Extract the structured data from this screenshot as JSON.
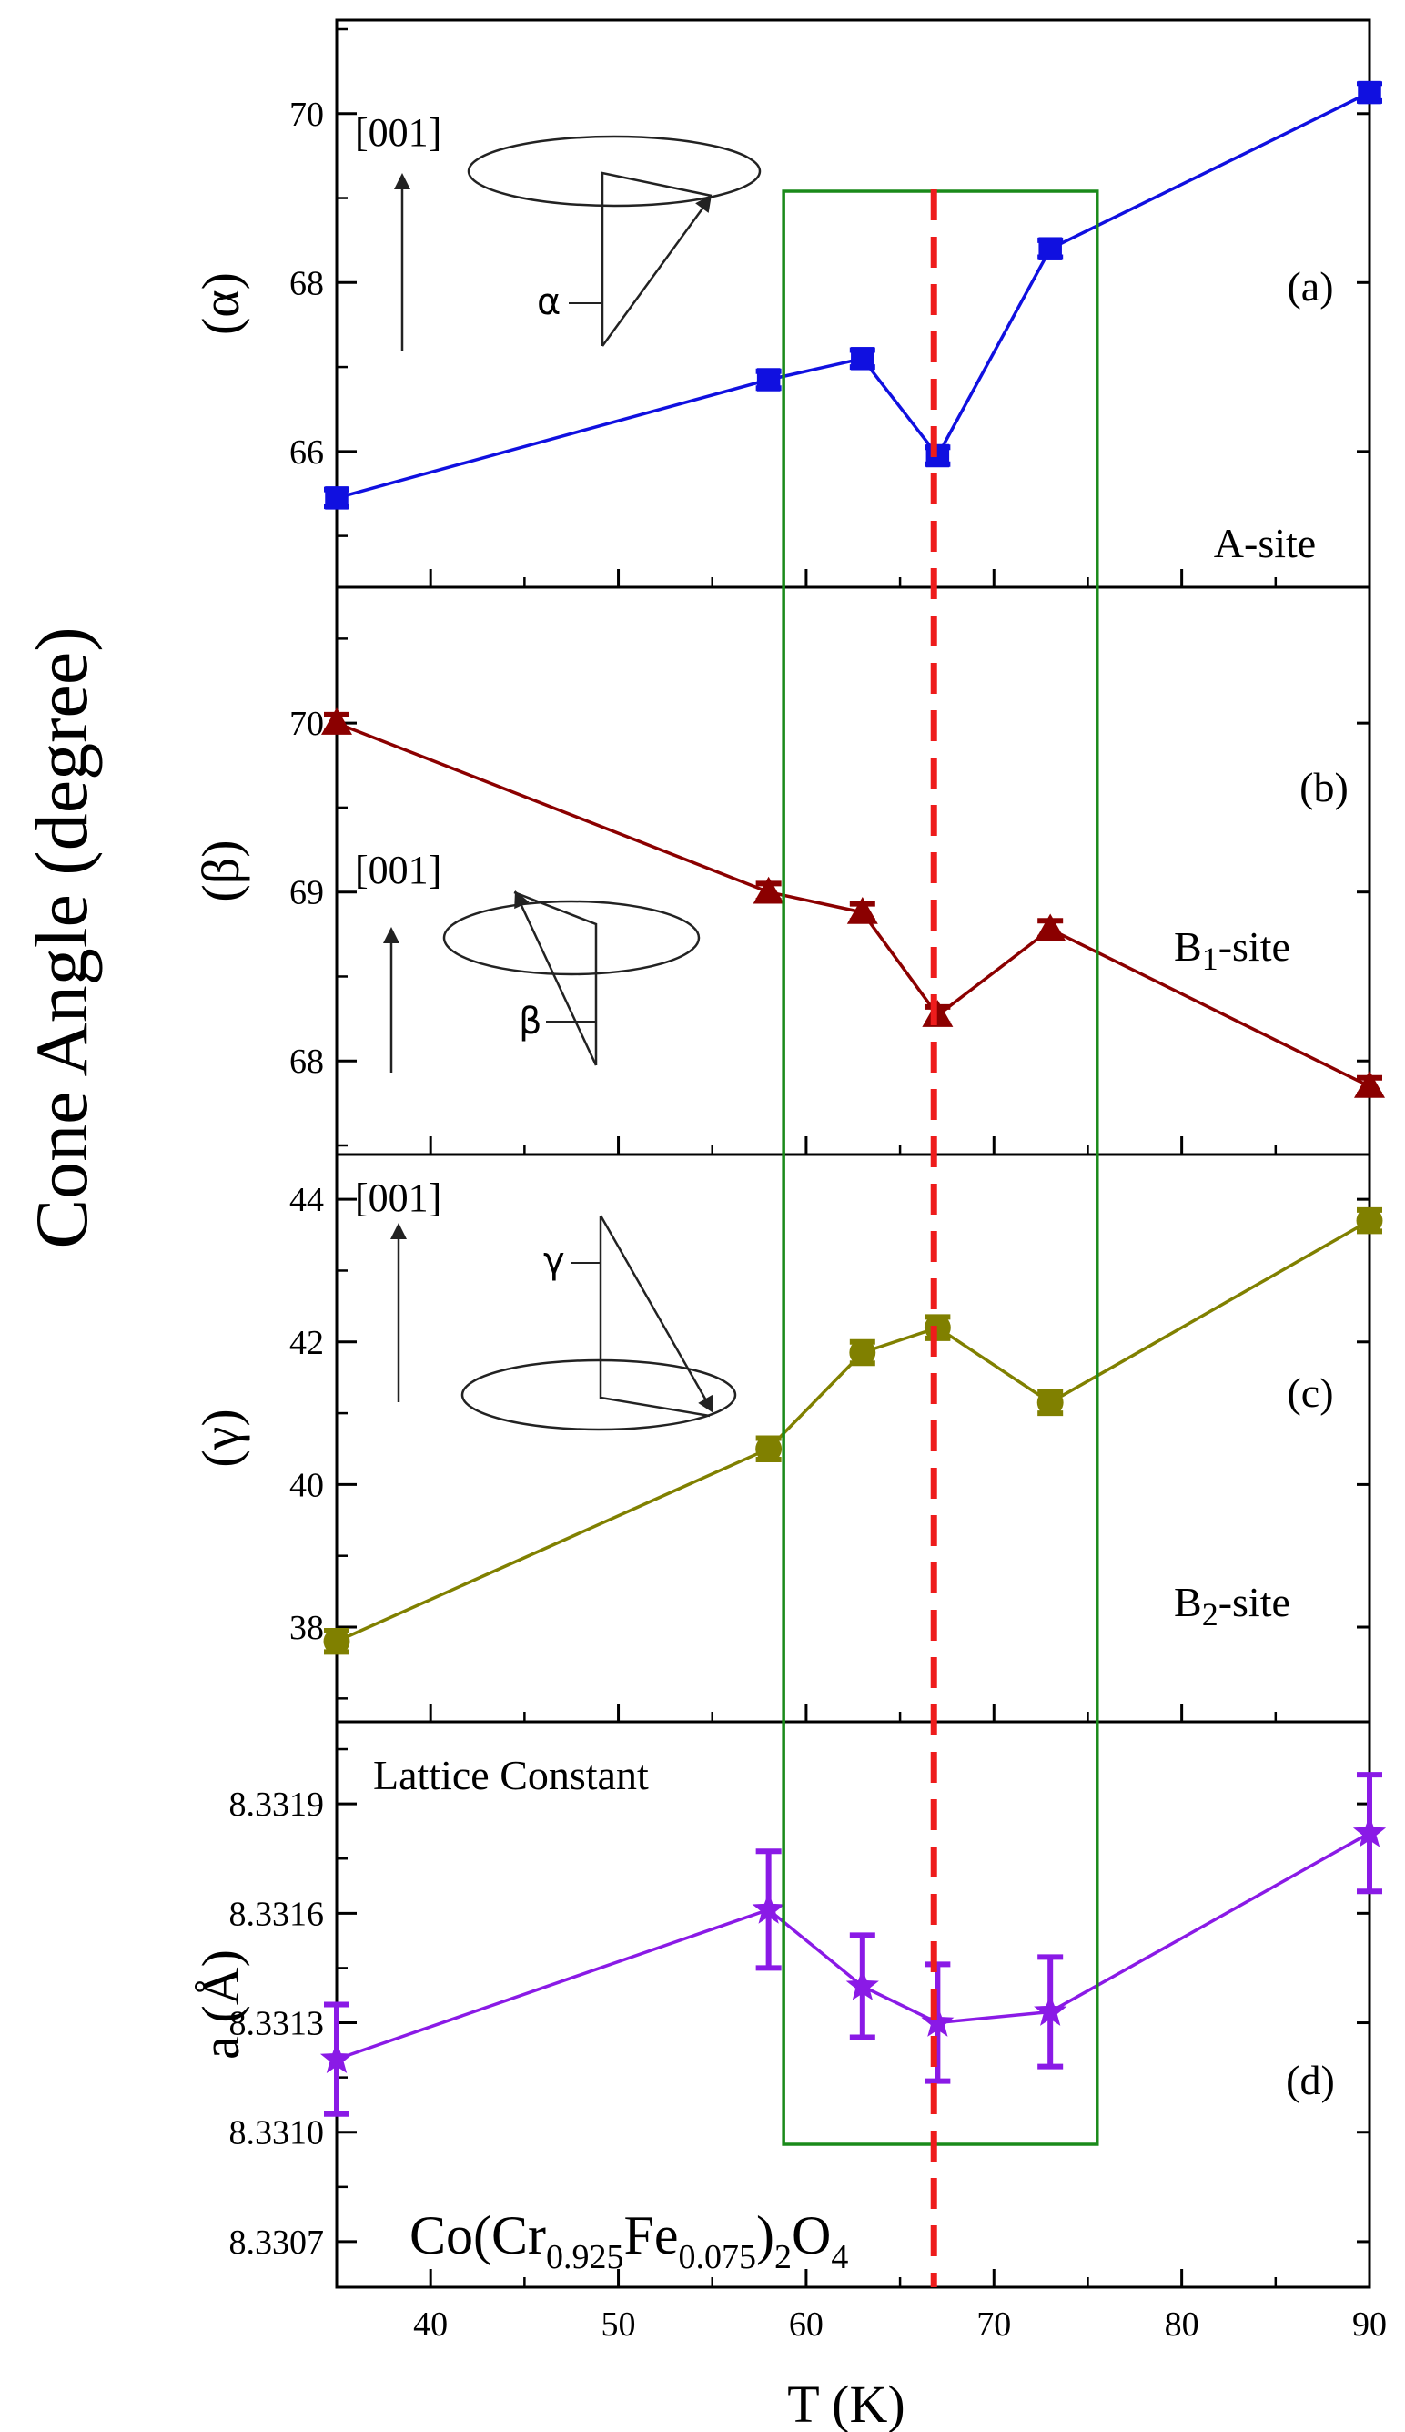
{
  "figure": {
    "shared_ylabel": "Cone Angle (degree)",
    "xlabel": "T (K)",
    "compound": {
      "base": "Co(Cr",
      "sub1": "0.925",
      "mid": "Fe",
      "sub2": "0.075",
      "close": ")",
      "sub3": "2",
      "o": "O",
      "sub4": "4"
    },
    "colors": {
      "blue": "#1010e0",
      "darkred": "#8b0000",
      "olive": "#808000",
      "violet": "#8a1ae6",
      "green_box": "#1a8a1a",
      "red_dash": "#ee1c1c"
    },
    "highlight_box": {
      "x_from": 58.8,
      "x_to": 75.5
    },
    "vertical_marker": {
      "x": 66.8,
      "style": "dashed"
    },
    "inset_axis_label": "[001]",
    "inset_symbols": {
      "a": "α",
      "b": "β",
      "c": "γ"
    }
  },
  "chart_data": [
    {
      "panel": "a",
      "type": "line",
      "tag": "(a)",
      "site_text": "A-site",
      "ylabel": "(α)",
      "xlim": [
        35,
        90
      ],
      "ylim": [
        64.5,
        71.0
      ],
      "yticks": [
        66,
        68,
        70
      ],
      "x": [
        35,
        58,
        63,
        67,
        73,
        90
      ],
      "y": [
        65.45,
        66.85,
        67.1,
        65.95,
        68.4,
        70.25
      ],
      "err": [
        0.1,
        0.1,
        0.1,
        0.1,
        0.1,
        0.1
      ],
      "marker": "square",
      "color": "#1010e0"
    },
    {
      "panel": "b",
      "type": "line",
      "tag": "(b)",
      "site_main": "B",
      "site_sub": "1",
      "site_rest": "-site",
      "ylabel": "(β)",
      "xlim": [
        35,
        90
      ],
      "ylim": [
        67.5,
        70.75
      ],
      "yticks": [
        68,
        69,
        70
      ],
      "x": [
        35,
        58,
        63,
        67,
        73,
        90
      ],
      "y": [
        70.0,
        69.0,
        68.88,
        68.27,
        68.78,
        67.85
      ],
      "err": [
        0.05,
        0.05,
        0.05,
        0.05,
        0.05,
        0.05
      ],
      "marker": "triangle",
      "color": "#8b0000"
    },
    {
      "panel": "c",
      "type": "line",
      "tag": "(c)",
      "site_main": "B",
      "site_sub": "2",
      "site_rest": "-site",
      "ylabel": "(γ)",
      "xlim": [
        35,
        90
      ],
      "ylim": [
        36.8,
        44.5
      ],
      "yticks": [
        38,
        40,
        42,
        44
      ],
      "x": [
        35,
        58,
        63,
        67,
        73,
        90
      ],
      "y": [
        37.8,
        40.5,
        41.85,
        42.2,
        41.15,
        43.7
      ],
      "err": [
        0.15,
        0.15,
        0.15,
        0.15,
        0.15,
        0.15
      ],
      "marker": "circle",
      "color": "#808000"
    },
    {
      "panel": "d",
      "type": "line",
      "tag": "(d)",
      "inner_title": "Lattice Constant",
      "ylabel": "a (Å)",
      "xlim": [
        35,
        90
      ],
      "ylim": [
        8.3306,
        8.3321
      ],
      "yticks": [
        8.3307,
        8.331,
        8.3313,
        8.3316,
        8.3319
      ],
      "ytick_labels": [
        "8.3307",
        "8.3310",
        "8.3313",
        "8.3316",
        "8.3319"
      ],
      "xticks": [
        40,
        50,
        60,
        70,
        80,
        90
      ],
      "x": [
        35,
        58,
        63,
        67,
        73,
        90
      ],
      "y": [
        8.3312,
        8.33161,
        8.3314,
        8.3313,
        8.33133,
        8.33182
      ],
      "err": [
        0.00015,
        0.00016,
        0.00014,
        0.00016,
        0.00015,
        0.00016
      ],
      "marker": "star",
      "color": "#8a1ae6"
    }
  ]
}
